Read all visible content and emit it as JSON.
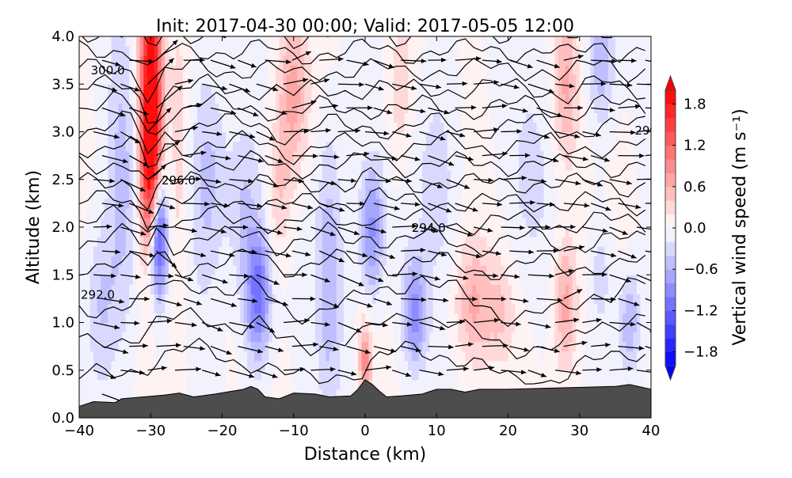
{
  "chart_data": {
    "type": "heatmap",
    "title": "Init: 2017-04-30 00:00; Valid: 2017-05-05 12:00",
    "xlabel": "Distance (km)",
    "ylabel": "Altitude (km)",
    "xlim": [
      -40,
      40
    ],
    "ylim": [
      0,
      4
    ],
    "xticks": [
      -40,
      -30,
      -20,
      -10,
      0,
      10,
      20,
      30,
      40
    ],
    "xtick_labels": [
      "−40",
      "−30",
      "−20",
      "−10",
      "0",
      "10",
      "20",
      "30",
      "40"
    ],
    "yticks": [
      0,
      0.5,
      1,
      1.5,
      2,
      2.5,
      3,
      3.5,
      4
    ],
    "ytick_labels": [
      "0.0",
      "0.5",
      "1.0",
      "1.5",
      "2.0",
      "2.5",
      "3.0",
      "3.5",
      "4.0"
    ],
    "colorbar": {
      "label": "Vertical wind speed (m s⁻¹)",
      "range": [
        -2,
        2
      ],
      "level_step": 0.2,
      "extend": "both",
      "ticks": [
        1.8,
        1.2,
        0.6,
        0.0,
        -0.6,
        -1.2,
        -1.8
      ],
      "tick_labels": [
        "1.8",
        "1.2",
        "0.6",
        "0.0",
        "−0.6",
        "−1.2",
        "−1.8"
      ],
      "colormap": "bwr"
    },
    "vertical_wind_features": [
      {
        "x": -30,
        "z": 3.4,
        "sx": 1.1,
        "sz": 1.0,
        "w": 2.2
      },
      {
        "x": -30,
        "z": 2.5,
        "sx": 0.9,
        "sz": 0.6,
        "w": 0.9
      },
      {
        "x": -29,
        "z": 1.9,
        "sx": 0.9,
        "sz": 0.45,
        "w": -1.7
      },
      {
        "x": -34,
        "z": 2.4,
        "sx": 1.5,
        "sz": 1.2,
        "w": -0.5
      },
      {
        "x": -37,
        "z": 1.2,
        "sx": 1.5,
        "sz": 0.6,
        "w": -0.4
      },
      {
        "x": -26,
        "z": 2.5,
        "sx": 1.0,
        "sz": 1.2,
        "w": 0.3
      },
      {
        "x": -22,
        "z": 2.5,
        "sx": 2.0,
        "sz": 0.8,
        "w": -0.5
      },
      {
        "x": -15,
        "z": 1.3,
        "sx": 1.3,
        "sz": 0.5,
        "w": -1.1
      },
      {
        "x": -17,
        "z": 2.2,
        "sx": 1.5,
        "sz": 0.6,
        "w": -0.4
      },
      {
        "x": -10,
        "z": 3.4,
        "sx": 1.5,
        "sz": 0.6,
        "w": 0.7
      },
      {
        "x": -12,
        "z": 2.4,
        "sx": 1.2,
        "sz": 0.5,
        "w": 0.4
      },
      {
        "x": -5,
        "z": 1.6,
        "sx": 1.3,
        "sz": 1.0,
        "w": -0.6
      },
      {
        "x": 0,
        "z": 0.6,
        "sx": 0.6,
        "sz": 0.3,
        "w": 0.9
      },
      {
        "x": 1,
        "z": 2.0,
        "sx": 1.2,
        "sz": 0.5,
        "w": -0.9
      },
      {
        "x": 7,
        "z": 1.1,
        "sx": 1.2,
        "sz": 0.4,
        "w": -0.9
      },
      {
        "x": 5,
        "z": 3.5,
        "sx": 1.2,
        "sz": 0.6,
        "w": 0.4
      },
      {
        "x": 10,
        "z": 2.6,
        "sx": 2.0,
        "sz": 0.8,
        "w": -0.3
      },
      {
        "x": 15,
        "z": 1.2,
        "sx": 1.8,
        "sz": 0.45,
        "w": 0.6
      },
      {
        "x": 19,
        "z": 1.1,
        "sx": 1.5,
        "sz": 0.4,
        "w": 0.4
      },
      {
        "x": 23,
        "z": 2.5,
        "sx": 2.0,
        "sz": 0.8,
        "w": -0.25
      },
      {
        "x": 28,
        "z": 1.2,
        "sx": 1.2,
        "sz": 0.5,
        "w": 0.7
      },
      {
        "x": 28,
        "z": 3.5,
        "sx": 1.2,
        "sz": 0.6,
        "w": 0.6
      },
      {
        "x": 33,
        "z": 3.8,
        "sx": 1.3,
        "sz": 0.5,
        "w": -0.6
      },
      {
        "x": 37,
        "z": 1.0,
        "sx": 1.2,
        "sz": 0.4,
        "w": -0.6
      },
      {
        "x": 33,
        "z": 1.5,
        "sx": 1.0,
        "sz": 0.4,
        "w": -0.3
      }
    ],
    "terrain": {
      "x": [
        -40,
        -38,
        -35,
        -34,
        -31,
        -28,
        -26,
        -24,
        -21,
        -17,
        -16,
        -15,
        -14,
        -12,
        -10,
        -7,
        -5,
        -2,
        -1,
        0,
        1,
        2,
        3,
        5,
        8,
        10,
        12,
        14,
        16,
        20,
        25,
        30,
        35,
        37,
        40
      ],
      "z": [
        0.12,
        0.17,
        0.16,
        0.2,
        0.22,
        0.24,
        0.26,
        0.22,
        0.25,
        0.3,
        0.33,
        0.3,
        0.22,
        0.2,
        0.26,
        0.25,
        0.22,
        0.23,
        0.3,
        0.4,
        0.35,
        0.28,
        0.22,
        0.23,
        0.25,
        0.3,
        0.3,
        0.27,
        0.3,
        0.3,
        0.31,
        0.32,
        0.33,
        0.35,
        0.3
      ]
    },
    "theta_contour_labels": [
      {
        "text": "300.0",
        "x": -38.6,
        "z": 3.65
      },
      {
        "text": "296.0",
        "x": -28.7,
        "z": 2.5
      },
      {
        "text": "294.0",
        "x": 6.3,
        "z": 2.0
      },
      {
        "text": "292.0",
        "x": -40,
        "z": 1.3
      },
      {
        "text": "29",
        "x": 37.5,
        "z": 3.02
      }
    ],
    "theta_contour_bases_km": [
      0.55,
      0.9,
      1.25,
      1.6,
      1.85,
      2.05,
      2.25,
      2.45,
      2.65,
      2.85,
      3.05,
      3.25,
      3.45,
      3.65,
      3.85,
      4.05
    ],
    "wind_vectors": {
      "x_start": -38,
      "x_step": 3.8,
      "z_start": 0.25,
      "z_step": 0.25,
      "mean_u_ms": 6
    }
  }
}
